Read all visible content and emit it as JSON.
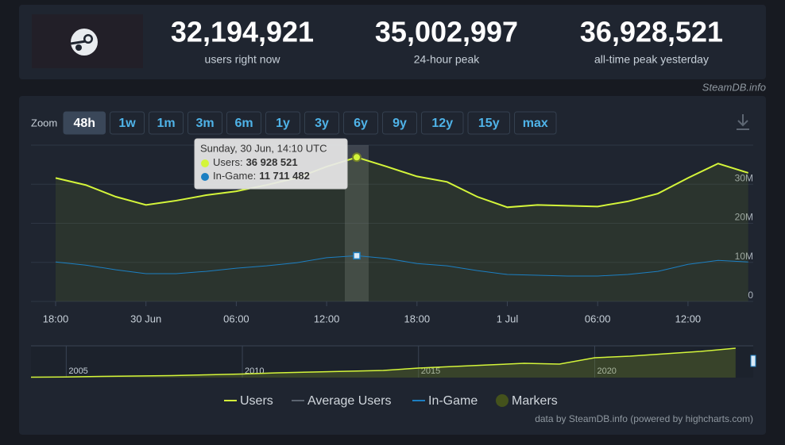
{
  "header": {
    "stats": [
      {
        "value": "32,194,921",
        "label": "users right now"
      },
      {
        "value": "35,002,997",
        "label": "24-hour peak"
      },
      {
        "value": "36,928,521",
        "label": "all-time peak yesterday"
      }
    ]
  },
  "brand": "SteamDB.info",
  "zoom": {
    "label": "Zoom",
    "buttons": [
      "48h",
      "1w",
      "1m",
      "3m",
      "6m",
      "1y",
      "3y",
      "6y",
      "9y",
      "12y",
      "15y",
      "max"
    ],
    "active": 0
  },
  "footer": "data by SteamDB.info (powered by highcharts.com)",
  "chart_data": [
    {
      "type": "line",
      "categories": [
        "18:00",
        null,
        null,
        "30 Jun",
        null,
        null,
        "06:00",
        null,
        null,
        "12:00",
        null,
        null,
        "18:00",
        null,
        null,
        "1 Jul",
        null,
        null,
        "06:00",
        null,
        null,
        "12:00",
        null,
        null
      ],
      "series": [
        {
          "name": "Users",
          "color": "#d4f53a",
          "values": [
            31.6,
            29.8,
            26.8,
            24.7,
            25.8,
            27.2,
            28.2,
            29.8,
            31.6,
            34.5,
            36.9,
            34.5,
            32.0,
            30.6,
            26.8,
            24.1,
            24.7,
            24.5,
            24.3,
            25.6,
            27.6,
            31.6,
            35.3,
            32.9
          ]
        },
        {
          "name": "In-Game",
          "color": "#1c7fc2",
          "values": [
            10.1,
            9.3,
            8.1,
            7.1,
            7.1,
            7.7,
            8.5,
            9.1,
            9.9,
            11.2,
            11.7,
            11.0,
            9.7,
            9.1,
            7.9,
            6.9,
            6.7,
            6.5,
            6.5,
            6.9,
            7.7,
            9.5,
            10.5,
            10.1
          ]
        }
      ],
      "legend_only": [
        {
          "name": "Average Users",
          "color": "#5b6470"
        },
        {
          "name": "Markers",
          "color": "#44521c"
        }
      ],
      "ylim": [
        0,
        40
      ],
      "yticks": [
        0,
        {
          "value": 10,
          "label": "10M"
        },
        {
          "value": 20,
          "label": "20M"
        },
        {
          "value": 30,
          "label": "30M"
        }
      ],
      "grid": true,
      "tooltip": {
        "index": 10,
        "title": "Sunday, 30 Jun, 14:10 UTC",
        "rows": [
          {
            "label": "Users:",
            "value": "36 928 521"
          },
          {
            "label": "In-Game:",
            "value": "11 711 482"
          }
        ]
      }
    },
    {
      "type": "area",
      "color": "#d4f53a",
      "x": [
        2004,
        2005,
        2006,
        2007,
        2008,
        2009,
        2010,
        2011,
        2012,
        2013,
        2014,
        2015,
        2016,
        2017,
        2018,
        2019,
        2020,
        2021,
        2022,
        2023,
        2024
      ],
      "values": [
        0.5,
        0.7,
        1.5,
        2,
        2.5,
        3.5,
        4.5,
        6,
        7,
        8,
        9,
        12,
        14,
        16,
        18,
        17,
        25,
        27,
        30,
        33,
        37
      ],
      "xlim": [
        2004,
        2024.5
      ],
      "ylim": [
        0,
        40
      ],
      "xticks": [
        2005,
        2010,
        2015,
        2020
      ]
    }
  ]
}
